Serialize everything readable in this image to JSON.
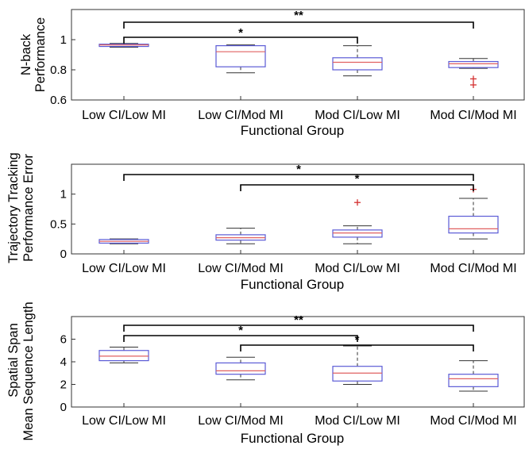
{
  "chart_data": [
    {
      "type": "box",
      "title": "",
      "xlabel": "Functional Group",
      "ylabel_lines": [
        "N-back",
        "Performance"
      ],
      "categories": [
        "Low CI/Low MI",
        "Low CI/Mod MI",
        "Mod CI/Low MI",
        "Mod CI/Mod MI"
      ],
      "ylim": [
        0.6,
        1.2
      ],
      "yticks": [
        0.6,
        0.8,
        1.0
      ],
      "ytick_labels": [
        "0.6",
        "0.8",
        "1"
      ],
      "boxes": [
        {
          "whisker_low": 0.95,
          "q1": 0.955,
          "median": 0.965,
          "q3": 0.97,
          "whisker_high": 0.975,
          "outliers": []
        },
        {
          "whisker_low": 0.78,
          "q1": 0.82,
          "median": 0.92,
          "q3": 0.96,
          "whisker_high": 0.965,
          "outliers": []
        },
        {
          "whisker_low": 0.76,
          "q1": 0.8,
          "median": 0.85,
          "q3": 0.88,
          "whisker_high": 0.96,
          "outliers": []
        },
        {
          "whisker_low": 0.81,
          "q1": 0.815,
          "median": 0.84,
          "q3": 0.855,
          "whisker_high": 0.875,
          "outliers": [
            0.74,
            0.7
          ]
        }
      ],
      "significance": [
        {
          "from": 0,
          "to": 3,
          "label": "**"
        },
        {
          "from": 0,
          "to": 2,
          "label": "*"
        }
      ]
    },
    {
      "type": "box",
      "title": "",
      "xlabel": "Functional Group",
      "ylabel_lines": [
        "Trajectory Tracking",
        "Performance Error"
      ],
      "categories": [
        "Low CI/Low MI",
        "Low CI/Mod MI",
        "Mod CI/Low MI",
        "Mod CI/Mod MI"
      ],
      "ylim": [
        0,
        1.5
      ],
      "yticks": [
        0,
        0.5,
        1.0
      ],
      "ytick_labels": [
        "0",
        "0.5",
        "1"
      ],
      "boxes": [
        {
          "whisker_low": 0.17,
          "q1": 0.18,
          "median": 0.21,
          "q3": 0.24,
          "whisker_high": 0.25,
          "outliers": []
        },
        {
          "whisker_low": 0.17,
          "q1": 0.23,
          "median": 0.27,
          "q3": 0.32,
          "whisker_high": 0.43,
          "outliers": []
        },
        {
          "whisker_low": 0.17,
          "q1": 0.28,
          "median": 0.35,
          "q3": 0.4,
          "whisker_high": 0.47,
          "outliers": [
            0.86
          ]
        },
        {
          "whisker_low": 0.25,
          "q1": 0.35,
          "median": 0.42,
          "q3": 0.63,
          "whisker_high": 0.93,
          "outliers": [
            1.08
          ]
        }
      ],
      "significance": [
        {
          "from": 0,
          "to": 3,
          "label": "*"
        },
        {
          "from": 1,
          "to": 3,
          "label": "*"
        }
      ]
    },
    {
      "type": "box",
      "title": "",
      "xlabel": "Functional Group",
      "ylabel_lines": [
        "Spatial Span",
        "Mean Sequence Length"
      ],
      "categories": [
        "Low CI/Low MI",
        "Low CI/Mod MI",
        "Mod CI/Low MI",
        "Mod CI/Mod MI"
      ],
      "ylim": [
        0,
        8
      ],
      "yticks": [
        0,
        2,
        4,
        6
      ],
      "ytick_labels": [
        "0",
        "2",
        "4",
        "6"
      ],
      "boxes": [
        {
          "whisker_low": 3.9,
          "q1": 4.1,
          "median": 4.5,
          "q3": 5.0,
          "whisker_high": 5.3,
          "outliers": []
        },
        {
          "whisker_low": 2.4,
          "q1": 2.9,
          "median": 3.2,
          "q3": 3.9,
          "whisker_high": 4.4,
          "outliers": []
        },
        {
          "whisker_low": 2.0,
          "q1": 2.3,
          "median": 3.0,
          "q3": 3.6,
          "whisker_high": 5.4,
          "outliers": []
        },
        {
          "whisker_low": 1.4,
          "q1": 1.8,
          "median": 2.5,
          "q3": 2.9,
          "whisker_high": 4.1,
          "outliers": []
        }
      ],
      "significance": [
        {
          "from": 0,
          "to": 3,
          "label": "**"
        },
        {
          "from": 0,
          "to": 2,
          "label": "*"
        },
        {
          "from": 1,
          "to": 3,
          "label": "*"
        }
      ]
    }
  ],
  "colors": {
    "box": "#5b5bd6",
    "median": "#e06060",
    "whisker": "#333333",
    "outlier": "#d43030",
    "bracket": "#000000"
  }
}
